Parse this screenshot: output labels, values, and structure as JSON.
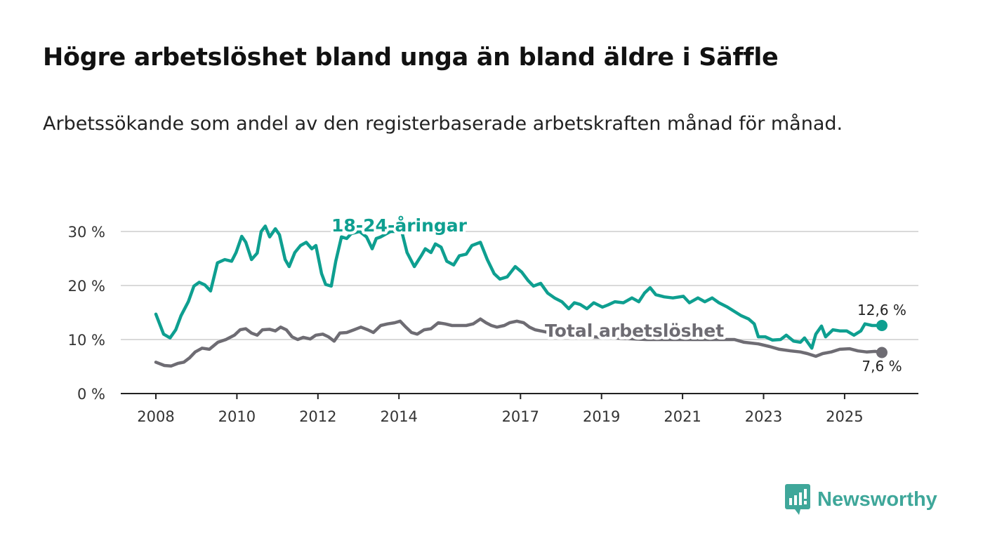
{
  "title": "Högre arbetslöshet bland unga än bland äldre i Säffle",
  "subtitle": "Arbetssökande som andel av den registerbaserade arbetskraften månad för månad.",
  "brand": "Newsworthy",
  "colors": {
    "youth": "#0e9f90",
    "total": "#6e6c73",
    "grid": "#d9d9d9",
    "axis": "#222222"
  },
  "chart_data": {
    "type": "line",
    "title": "Högre arbetslöshet bland unga än bland äldre i Säffle",
    "xlabel": "",
    "ylabel": "",
    "ylim": [
      0,
      30
    ],
    "yticks": [
      0,
      10,
      20,
      30
    ],
    "ytick_labels": [
      "0 %",
      "10 %",
      "20 %",
      "30 %"
    ],
    "xticks": [
      2008,
      2010,
      2012,
      2014,
      2017,
      2019,
      2021,
      2023,
      2025
    ],
    "xtick_labels": [
      "2008",
      "2010",
      "2012",
      "2014",
      "2017",
      "2019",
      "2021",
      "2023",
      "2025"
    ],
    "xlim": [
      2007.13,
      2026.8
    ],
    "grid": true,
    "series": [
      {
        "name": "18-24-åringar",
        "key": "youth",
        "end_label": "12,6 %",
        "x": [
          2008.0,
          2008.19,
          2008.35,
          2008.49,
          2008.62,
          2008.8,
          2008.94,
          2009.07,
          2009.21,
          2009.35,
          2009.52,
          2009.7,
          2009.87,
          2009.98,
          2010.12,
          2010.22,
          2010.36,
          2010.5,
          2010.6,
          2010.7,
          2010.81,
          2010.95,
          2011.05,
          2011.19,
          2011.29,
          2011.43,
          2011.57,
          2011.71,
          2011.85,
          2011.95,
          2012.09,
          2012.19,
          2012.33,
          2012.44,
          2012.58,
          2012.71,
          2012.82,
          2013.03,
          2013.2,
          2013.34,
          2013.44,
          2013.55,
          2013.79,
          2014.07,
          2014.2,
          2014.38,
          2014.55,
          2014.65,
          2014.79,
          2014.9,
          2015.04,
          2015.18,
          2015.35,
          2015.49,
          2015.66,
          2015.8,
          2016.01,
          2016.18,
          2016.35,
          2016.49,
          2016.67,
          2016.87,
          2017.03,
          2017.19,
          2017.32,
          2017.5,
          2017.67,
          2017.84,
          2018.02,
          2018.19,
          2018.33,
          2018.47,
          2018.64,
          2018.81,
          2019.02,
          2019.16,
          2019.33,
          2019.54,
          2019.75,
          2019.92,
          2020.06,
          2020.2,
          2020.34,
          2020.55,
          2020.76,
          2021.02,
          2021.17,
          2021.38,
          2021.55,
          2021.73,
          2021.9,
          2022.11,
          2022.28,
          2022.45,
          2022.63,
          2022.77,
          2022.87,
          2023.04,
          2023.22,
          2023.42,
          2023.56,
          2023.74,
          2023.91,
          2024.01,
          2024.19,
          2024.29,
          2024.43,
          2024.53,
          2024.71,
          2024.88,
          2025.05,
          2025.23,
          2025.4,
          2025.5,
          2025.68,
          2025.92
        ],
        "y": [
          14.7,
          11.0,
          10.3,
          11.8,
          14.4,
          17.0,
          19.9,
          20.6,
          20.1,
          19.0,
          24.2,
          24.8,
          24.5,
          26.1,
          29.1,
          28.0,
          24.8,
          26.0,
          30.0,
          31.0,
          29.0,
          30.5,
          29.4,
          24.8,
          23.5,
          26.1,
          27.4,
          28.0,
          26.8,
          27.4,
          22.2,
          20.2,
          19.9,
          24.5,
          29.0,
          28.7,
          29.6,
          30.0,
          29.0,
          26.8,
          28.7,
          29.0,
          30.0,
          30.0,
          26.1,
          23.5,
          25.5,
          26.8,
          26.1,
          27.7,
          27.1,
          24.5,
          23.8,
          25.5,
          25.8,
          27.4,
          28.0,
          24.8,
          22.2,
          21.2,
          21.6,
          23.5,
          22.5,
          20.9,
          19.9,
          20.4,
          18.6,
          17.7,
          17.0,
          15.7,
          16.8,
          16.5,
          15.7,
          16.8,
          16.0,
          16.4,
          17.0,
          16.8,
          17.7,
          17.0,
          18.6,
          19.6,
          18.3,
          17.9,
          17.7,
          18.0,
          16.8,
          17.7,
          17.0,
          17.7,
          16.8,
          16.0,
          15.2,
          14.4,
          13.8,
          12.9,
          10.5,
          10.5,
          9.9,
          10.0,
          10.8,
          9.7,
          9.5,
          10.3,
          8.4,
          11.0,
          12.5,
          10.5,
          11.8,
          11.6,
          11.6,
          10.8,
          11.6,
          12.9,
          12.6,
          12.6
        ]
      },
      {
        "name": "Total arbetslöshet",
        "key": "total",
        "end_label": "7,6 %",
        "x": [
          2008.0,
          2008.21,
          2008.38,
          2008.55,
          2008.69,
          2008.83,
          2008.97,
          2009.14,
          2009.32,
          2009.53,
          2009.73,
          2009.94,
          2010.08,
          2010.22,
          2010.36,
          2010.5,
          2010.63,
          2010.81,
          2010.95,
          2011.08,
          2011.22,
          2011.36,
          2011.5,
          2011.64,
          2011.81,
          2011.95,
          2012.12,
          2012.26,
          2012.4,
          2012.54,
          2012.71,
          2012.89,
          2013.06,
          2013.23,
          2013.37,
          2013.55,
          2013.72,
          2013.89,
          2014.03,
          2014.17,
          2014.31,
          2014.45,
          2014.62,
          2014.79,
          2014.97,
          2015.14,
          2015.31,
          2015.49,
          2015.66,
          2015.83,
          2016.01,
          2016.15,
          2016.28,
          2016.42,
          2016.6,
          2016.73,
          2016.91,
          2017.08,
          2017.22,
          2017.36,
          2018.02,
          2019.02,
          2020.1,
          2021.02,
          2022.28,
          2022.52,
          2022.87,
          2023.15,
          2023.39,
          2023.67,
          2023.91,
          2024.08,
          2024.29,
          2024.46,
          2024.67,
          2024.88,
          2025.12,
          2025.33,
          2025.54,
          2025.75,
          2025.92
        ],
        "y": [
          5.8,
          5.2,
          5.1,
          5.6,
          5.8,
          6.6,
          7.7,
          8.4,
          8.2,
          9.5,
          10.0,
          10.8,
          11.8,
          12.0,
          11.2,
          10.8,
          11.8,
          11.9,
          11.6,
          12.3,
          11.8,
          10.5,
          10.0,
          10.4,
          10.1,
          10.8,
          11.0,
          10.5,
          9.7,
          11.2,
          11.3,
          11.8,
          12.3,
          11.8,
          11.3,
          12.6,
          12.9,
          13.1,
          13.4,
          12.3,
          11.3,
          11.0,
          11.8,
          12.0,
          13.1,
          12.9,
          12.6,
          12.6,
          12.6,
          12.9,
          13.8,
          13.1,
          12.6,
          12.3,
          12.6,
          13.1,
          13.4,
          13.1,
          12.3,
          11.8,
          10.8,
          10.4,
          10.0,
          10.0,
          10.0,
          9.5,
          9.2,
          8.7,
          8.2,
          7.9,
          7.7,
          7.4,
          6.9,
          7.4,
          7.7,
          8.2,
          8.3,
          7.9,
          7.7,
          7.8,
          7.6
        ]
      }
    ],
    "annotations": [
      "18-24-åringar",
      "Total arbetslöshet",
      "12,6 %",
      "7,6 %"
    ]
  }
}
